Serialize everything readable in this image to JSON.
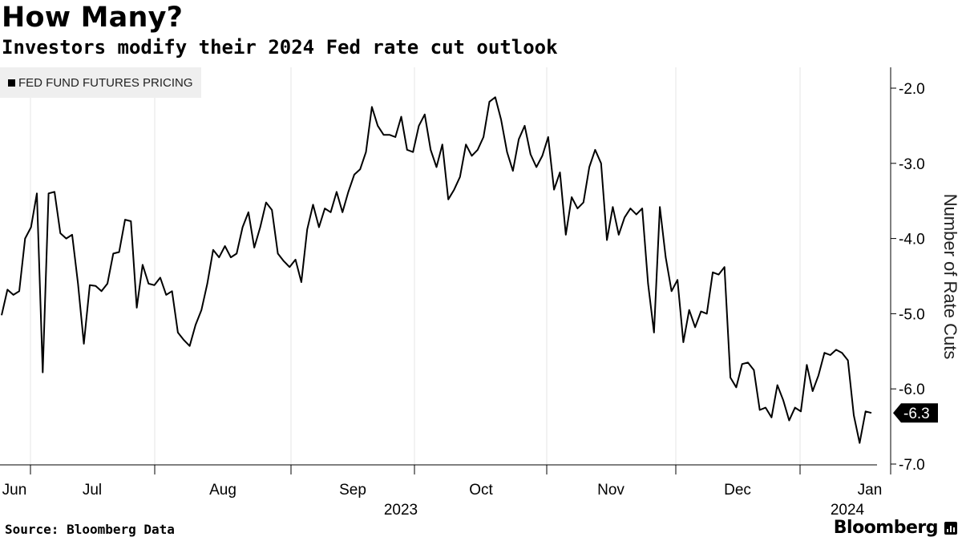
{
  "header": {
    "title": "How Many?",
    "subtitle": "Investors modify their 2024 Fed rate cut outlook"
  },
  "legend": {
    "label": "FED FUND FUTURES PRICING"
  },
  "footer": {
    "source": "Source: Bloomberg Data",
    "brand": "Bloomberg"
  },
  "colors": {
    "line": "#000000",
    "grid": "#e6e6e6",
    "legend_bg": "#efefef"
  },
  "chart_data": {
    "type": "line",
    "ylabel": "Number of Rate Cuts",
    "xlabel": "",
    "ylim": [
      -7.0,
      -1.75
    ],
    "y_inverted": false,
    "yticks": [
      -2.0,
      -3.0,
      -4.0,
      -5.0,
      -6.0,
      -7.0
    ],
    "ytick_labels": [
      "-2.0",
      "-3.0",
      "-4.0",
      "-5.0",
      "-6.0",
      "-7.0"
    ],
    "month_labels": [
      "Jun",
      "Jul",
      "Aug",
      "Sep",
      "Oct",
      "Nov",
      "Dec",
      "Jan"
    ],
    "year_labels": [
      {
        "text": "2023",
        "under": "Sep"
      },
      {
        "text": "2024",
        "under": "Jan"
      }
    ],
    "last_value_label": "-6.3",
    "grid": false,
    "series": [
      {
        "values": [
          -5.02,
          -4.68,
          -4.75,
          -4.7,
          -4.0,
          -3.85,
          -3.4,
          -5.78,
          -3.4,
          -3.38,
          -3.93,
          -4.0,
          -3.95,
          -4.6,
          -5.4,
          -4.62,
          -4.63,
          -4.7,
          -4.6,
          -4.2,
          -4.18,
          -3.75,
          -3.77,
          -4.92,
          -4.35,
          -4.6,
          -4.62,
          -4.52,
          -4.75,
          -4.7,
          -5.25,
          -5.35,
          -5.43,
          -5.15,
          -4.95,
          -4.6,
          -4.15,
          -4.25,
          -4.1,
          -4.25,
          -4.2,
          -3.85,
          -3.65,
          -4.12,
          -3.85,
          -3.52,
          -3.62,
          -4.2,
          -4.3,
          -4.38,
          -4.28,
          -4.58,
          -3.88,
          -3.55,
          -3.85,
          -3.6,
          -3.65,
          -3.38,
          -3.65,
          -3.38,
          -3.15,
          -3.08,
          -2.85,
          -2.25,
          -2.5,
          -2.62,
          -2.62,
          -2.65,
          -2.38,
          -2.82,
          -2.85,
          -2.5,
          -2.35,
          -2.82,
          -3.05,
          -2.75,
          -3.48,
          -3.35,
          -3.18,
          -2.75,
          -2.9,
          -2.82,
          -2.65,
          -2.18,
          -2.12,
          -2.42,
          -2.85,
          -3.1,
          -2.68,
          -2.5,
          -2.88,
          -3.05,
          -2.9,
          -2.65,
          -3.35,
          -3.12,
          -3.95,
          -3.45,
          -3.6,
          -3.52,
          -3.05,
          -2.82,
          -3.0,
          -4.02,
          -3.58,
          -3.95,
          -3.72,
          -3.6,
          -3.68,
          -3.6,
          -4.6,
          -5.25,
          -3.58,
          -4.25,
          -4.7,
          -4.55,
          -5.38,
          -4.95,
          -5.18,
          -4.97,
          -5.0,
          -4.45,
          -4.48,
          -4.38,
          -5.85,
          -5.98,
          -5.67,
          -5.65,
          -5.75,
          -6.28,
          -6.25,
          -6.38,
          -5.95,
          -6.15,
          -6.42,
          -6.25,
          -6.3,
          -5.68,
          -6.03,
          -5.82,
          -5.52,
          -5.55,
          -5.48,
          -5.52,
          -5.62,
          -6.35,
          -6.72,
          -6.3,
          -6.32
        ]
      }
    ]
  }
}
